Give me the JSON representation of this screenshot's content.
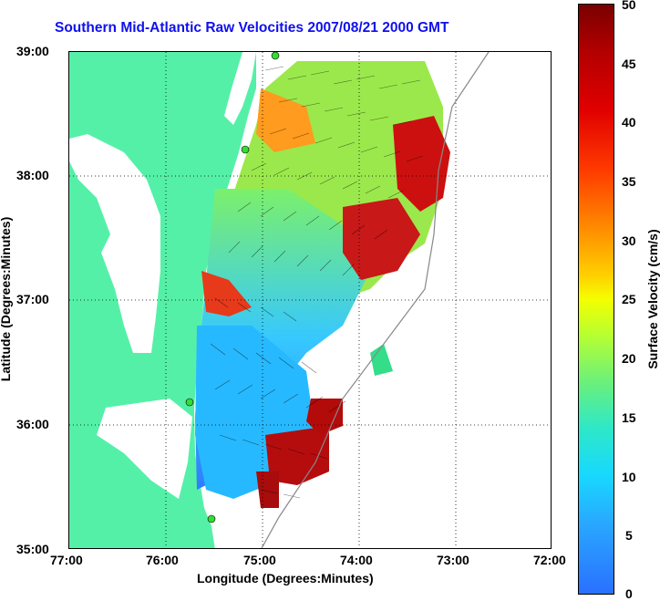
{
  "title": "Southern Mid-Atlantic Raw Velocities 2007/08/21 2000 GMT",
  "x_axis_label": "Longitude (Degrees:Minutes)",
  "y_axis_label": "Latitude (Degrees:Minutes)",
  "x_ticks": [
    "77:00",
    "76:00",
    "75:00",
    "74:00",
    "73:00",
    "72:00"
  ],
  "y_ticks": [
    "39:00",
    "38:00",
    "37:00",
    "36:00",
    "35:00"
  ],
  "colorbar": {
    "label": "Surface Velocity (cm/s)",
    "ticks": [
      "50",
      "45",
      "40",
      "35",
      "30",
      "25",
      "20",
      "15",
      "10",
      "5",
      "0"
    ],
    "min": 0,
    "max": 50
  },
  "map": {
    "lon_range": [
      -77,
      -72
    ],
    "lat_range": [
      35,
      39
    ],
    "land_color": "#55f0a8",
    "water_color": "#ffffff",
    "grid": "dotted"
  }
}
